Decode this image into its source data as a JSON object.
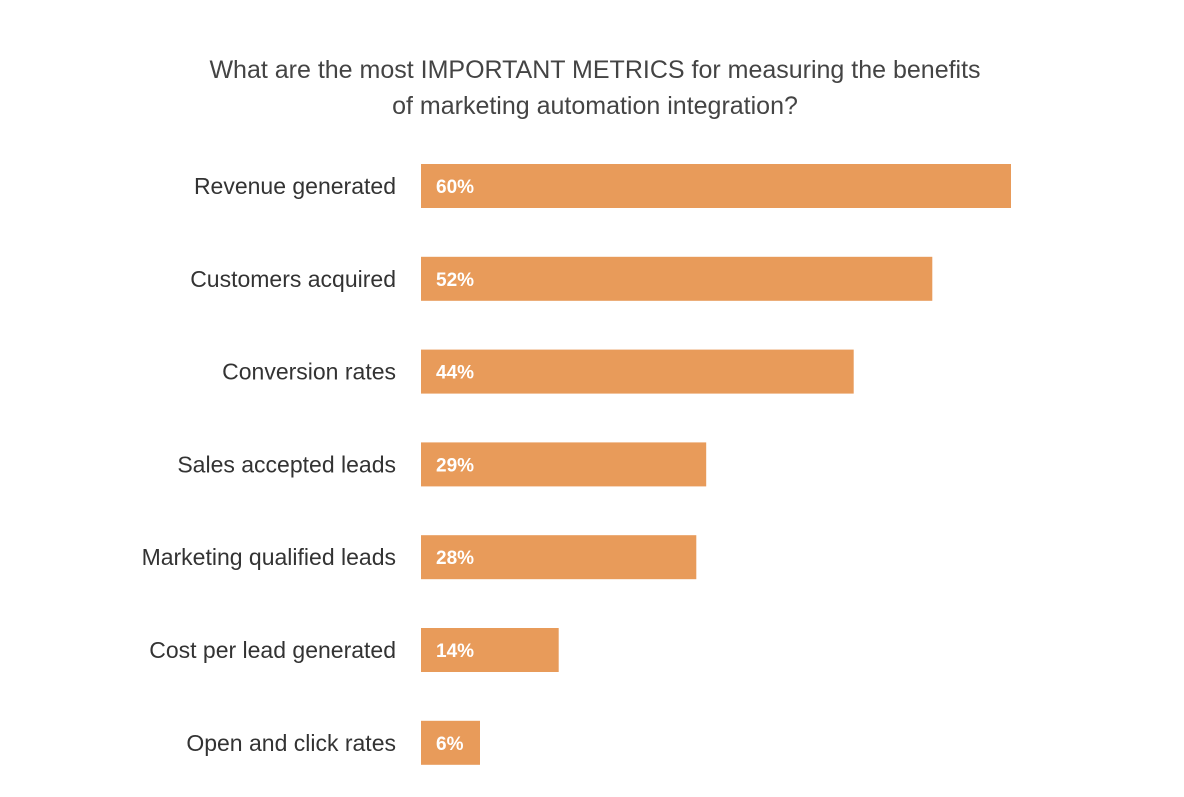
{
  "chart_data": {
    "type": "bar",
    "orientation": "horizontal",
    "title_lines": [
      "What are the most IMPORTANT METRICS for measuring the benefits",
      "of marketing automation integration?"
    ],
    "categories": [
      "Revenue generated",
      "Customers acquired",
      "Conversion rates",
      "Sales accepted leads",
      "Marketing qualified leads",
      "Cost per lead generated",
      "Open and click rates"
    ],
    "values": [
      60,
      52,
      44,
      29,
      28,
      14,
      6
    ],
    "value_labels": [
      "60%",
      "52%",
      "44%",
      "29%",
      "28%",
      "14%",
      "6%"
    ],
    "unit": "%",
    "xlim": [
      0,
      60
    ],
    "grid": false,
    "legend": "none",
    "bar_color": "#e89b5a",
    "value_label_color": "#ffffff"
  }
}
